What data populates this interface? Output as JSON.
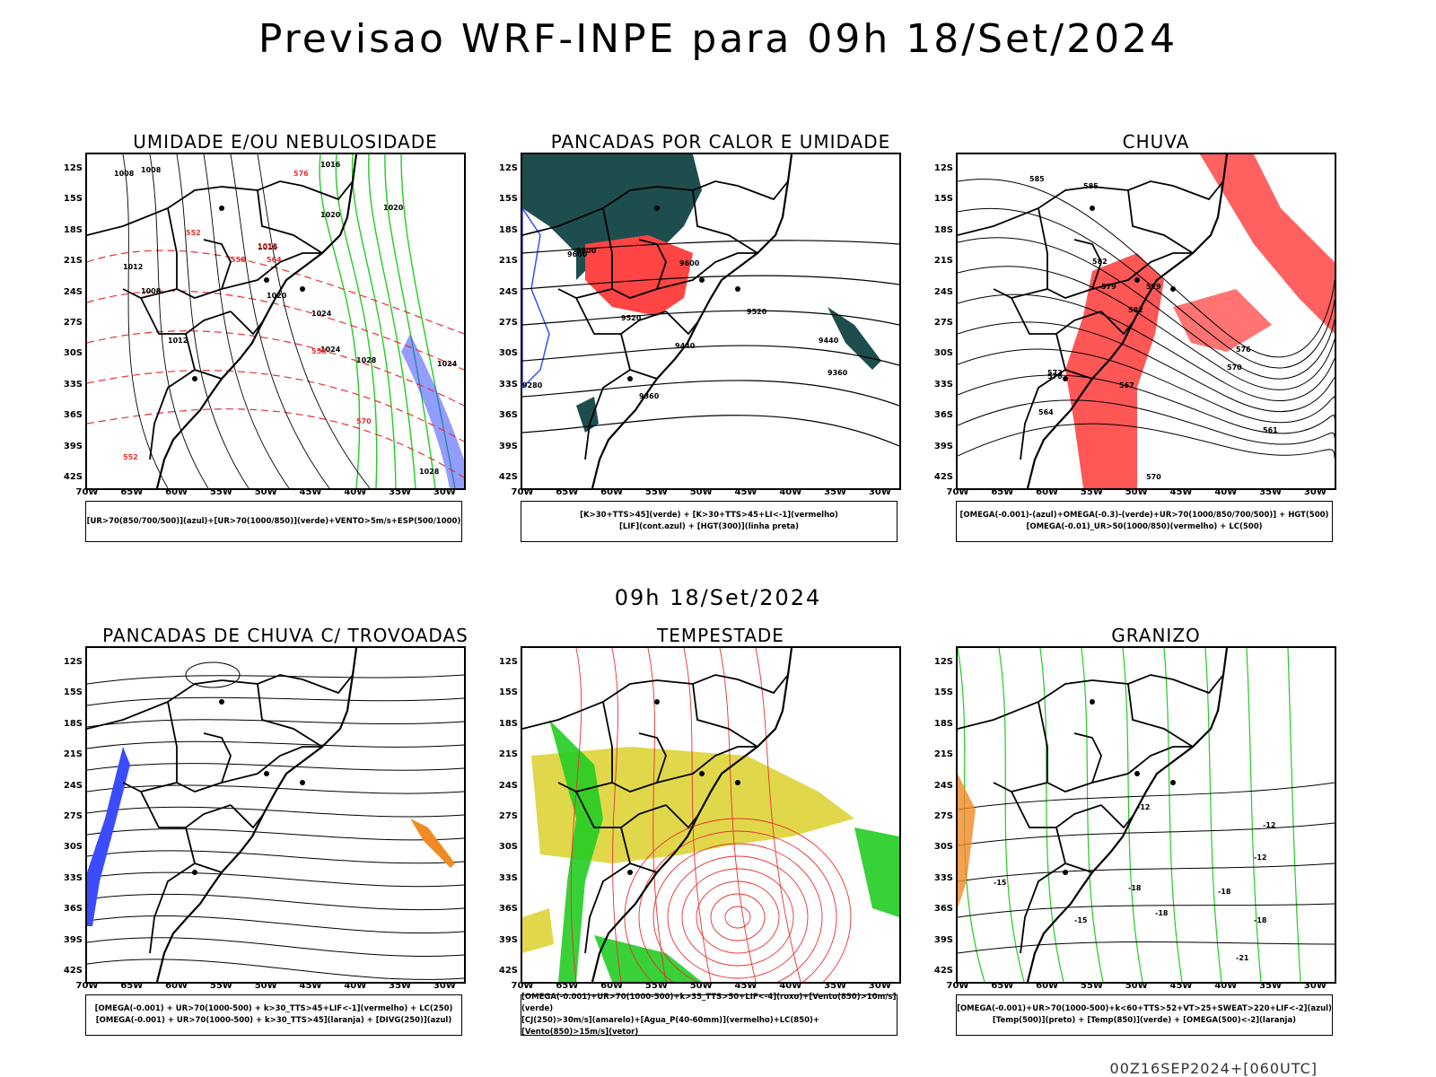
{
  "title": "Previsao WRF-INPE  para 09h 18/Set/2024",
  "mid_date": "09h 18/Set/2024",
  "run_label": "00Z16SEP2024+[060UTC]",
  "axes": {
    "lat_labels": [
      "12S",
      "15S",
      "18S",
      "21S",
      "24S",
      "27S",
      "30S",
      "33S",
      "36S",
      "39S",
      "42S"
    ],
    "lon_labels": [
      "70W",
      "65W",
      "60W",
      "55W",
      "50W",
      "45W",
      "40W",
      "35W",
      "30W"
    ]
  },
  "colors": {
    "humidity_blue": "#3b4cff",
    "humidity_green": "#22cc22",
    "instability_red": "#ff4444",
    "dark_teal": "#1e4d4d",
    "storm_yellow": "#e0d84a",
    "hail_orange": "#f08a24"
  },
  "panels": [
    {
      "title": "UMIDADE E/OU NEBULOSIDADE",
      "legend": [
        "[UR>70(850/700/500)](azul)+[UR>70(1000/850)](verde)+VENTO>5m/s+ESP(500/1000)"
      ],
      "labels": [
        "1008",
        "1008",
        "1016",
        "1020",
        "1016",
        "1012",
        "1008",
        "1012",
        "1020",
        "1024",
        "1024",
        "1028",
        "1028",
        "1024",
        "1020",
        "1012",
        "576",
        "564",
        "558",
        "552",
        "552",
        "558",
        "570"
      ]
    },
    {
      "title": "PANCADAS POR CALOR E UMIDADE",
      "legend": [
        "[K>30+TTS>45](verde) + [K>30+TTS>45+LI<-1](vermelho)",
        "[LIF](cont.azul) + [HGT(300)](linha preta)"
      ],
      "labels": [
        "9600",
        "9600",
        "9520",
        "9520",
        "9440",
        "9440",
        "9360",
        "9360",
        "9280",
        "9600"
      ]
    },
    {
      "title": "CHUVA",
      "legend": [
        "[OMEGA(-0.001)-(azul)+OMEGA(-0.3)-(verde)+UR>70(1000/850/700/500)] + HGT(500)",
        "[OMEGA(-0.01)_UR>50(1000/850)(vermelho) + LC(500)"
      ],
      "labels": [
        "585",
        "585",
        "582",
        "582",
        "579",
        "579",
        "576",
        "576",
        "573",
        "570",
        "567",
        "564",
        "561",
        "570"
      ]
    },
    {
      "title": "PANCADAS DE CHUVA C/ TROVOADAS",
      "legend": [
        "[OMEGA(-0.001) + UR>70(1000-500) + k>30_TTS>45+LIF<-1](vermelho) + LC(250)",
        "[OMEGA(-0.001) + UR>70(1000-500) + k>30_TTS>45](laranja) + [DIVG(250)](azul)"
      ],
      "labels": []
    },
    {
      "title": "TEMPESTADE",
      "legend": [
        "[OMEGA(-0.001)+UR>70(1000-500)+k>35_TTS>50+LIF<-4](roxo)+[Vento(850)>10m/s](verde)",
        "[CJ(250)>30m/s](amarelo)+[Agua_P(40-60mm)](vermelho)+LC(850)+[Vento(850)>15m/s](vetor)"
      ],
      "labels": []
    },
    {
      "title": "GRANIZO",
      "legend": [
        "[OMEGA(-0.001)+UR>70(1000-500)+k<60+TTS>52+VT>25+SWEAT>220+LIF<-2](azul)",
        "[Temp(500)](preto) + [Temp(850)](verde) + [OMEGA(500)<-2](laranja)"
      ],
      "labels": [
        "-12",
        "-12",
        "-12",
        "-15",
        "-15",
        "-18",
        "-18",
        "-18",
        "-18",
        "-21"
      ]
    }
  ]
}
